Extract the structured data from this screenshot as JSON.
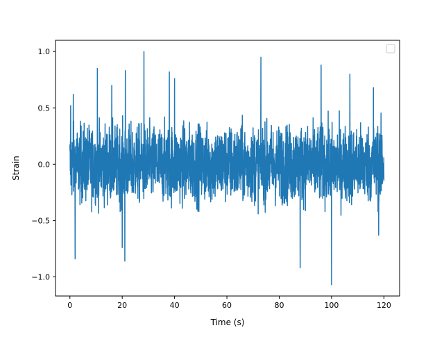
{
  "chart_data": {
    "type": "line",
    "title": "",
    "xlabel": "Time (s)",
    "ylabel": "Strain",
    "xlim": [
      -5.5,
      126.0
    ],
    "ylim": [
      -1.17,
      1.1
    ],
    "xticks": [
      0,
      20,
      40,
      60,
      80,
      100,
      120
    ],
    "yticks": [
      -1.0,
      -0.5,
      0.0,
      0.5,
      1.0
    ],
    "xtick_labels": [
      "0",
      "20",
      "40",
      "60",
      "80",
      "100",
      "120"
    ],
    "ytick_labels": [
      "−1.0",
      "−0.5",
      "0.0",
      "0.5",
      "1.0"
    ],
    "grid": false,
    "legend": {
      "placement": "top-right",
      "entries": []
    },
    "series": [
      {
        "color": "#1f77b4",
        "x_range": [
          0,
          120
        ],
        "description_values": {
          "typical_positive_max": 0.55,
          "typical_negative_min": -0.55,
          "peaks": [
            {
              "x": 0.3,
              "y": 0.52
            },
            {
              "x": 1.3,
              "y": 0.62
            },
            {
              "x": 2.0,
              "y": -0.84
            },
            {
              "x": 10.5,
              "y": 0.85
            },
            {
              "x": 16.0,
              "y": 0.7
            },
            {
              "x": 20.0,
              "y": -0.74
            },
            {
              "x": 21.2,
              "y": 0.83
            },
            {
              "x": 21.0,
              "y": -0.86
            },
            {
              "x": 28.3,
              "y": 1.0
            },
            {
              "x": 38.0,
              "y": 0.82
            },
            {
              "x": 40.0,
              "y": 0.76
            },
            {
              "x": 73.0,
              "y": 0.95
            },
            {
              "x": 88.0,
              "y": -0.92
            },
            {
              "x": 96.0,
              "y": 0.88
            },
            {
              "x": 100.0,
              "y": -1.07
            },
            {
              "x": 107.0,
              "y": 0.8
            },
            {
              "x": 116.0,
              "y": 0.68
            },
            {
              "x": 118.0,
              "y": -0.63
            }
          ]
        }
      }
    ]
  }
}
